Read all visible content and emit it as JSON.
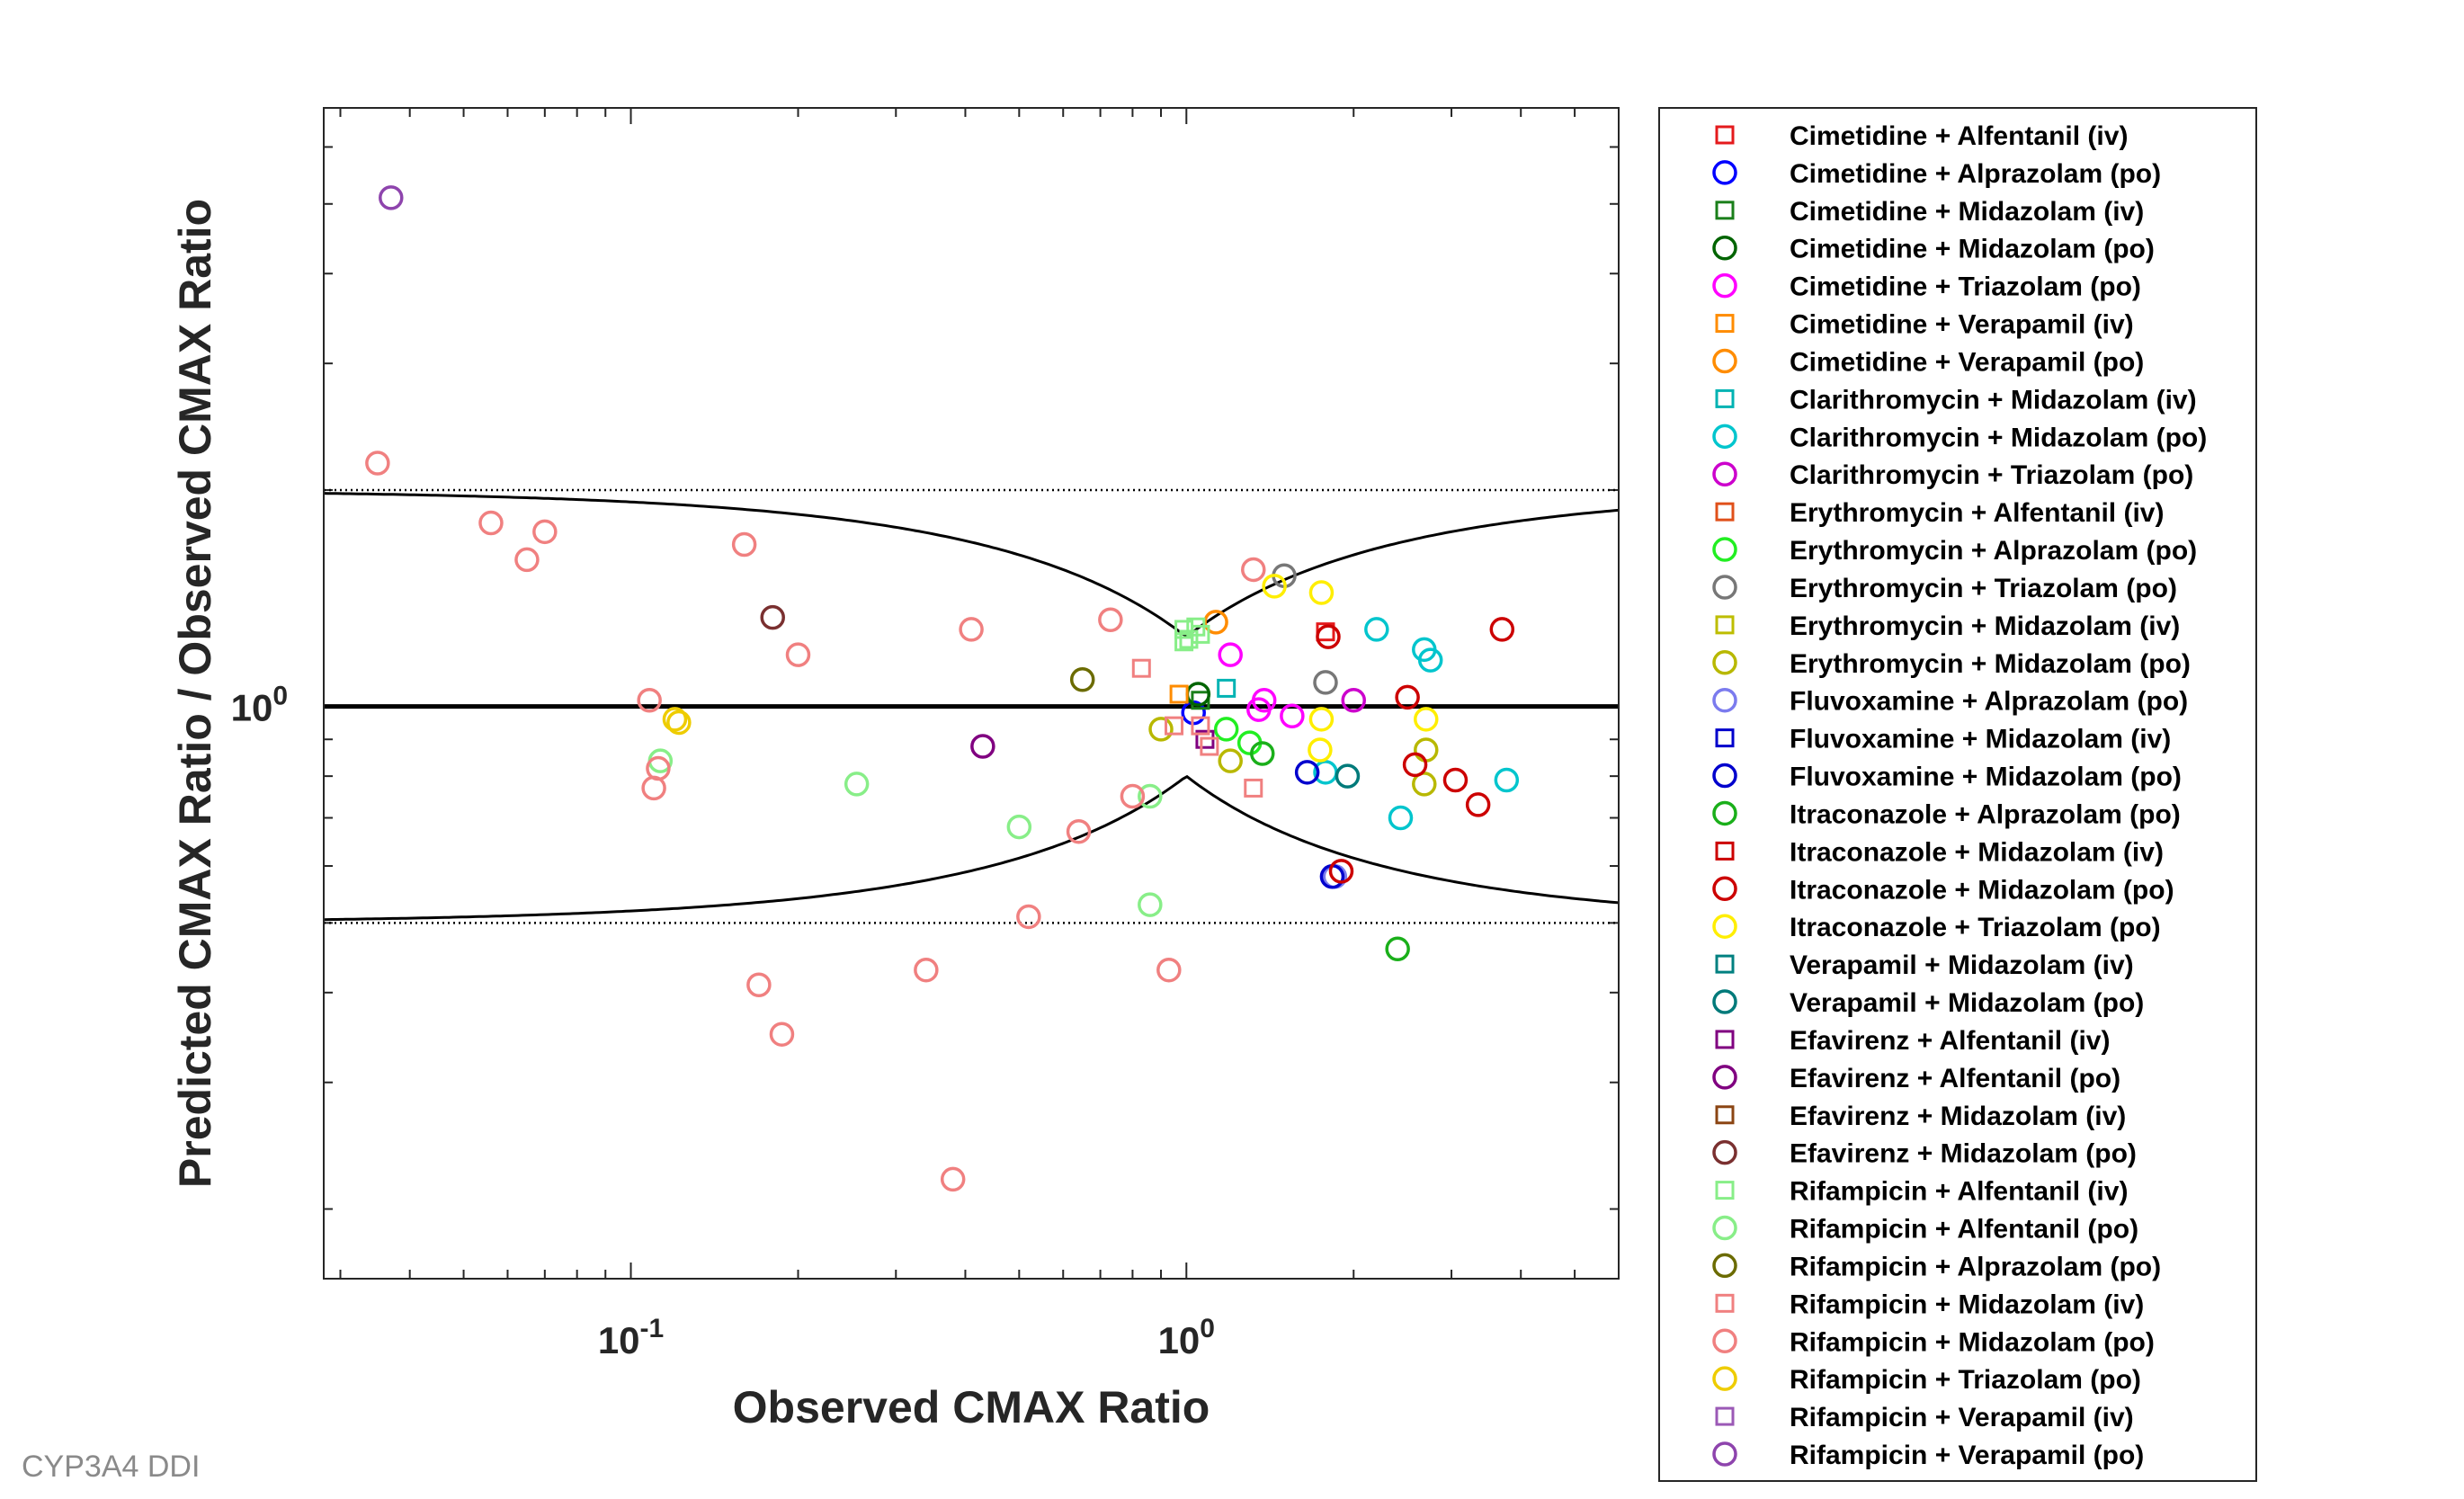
{
  "footer": "CYP3A4 DDI",
  "chart_data": {
    "type": "scatter",
    "xlabel": "Observed CMAX Ratio",
    "ylabel": "Predicted CMAX Ratio / Observed CMAX Ratio",
    "xscale": "log",
    "yscale": "log",
    "xlim": [
      0.028,
      6.0
    ],
    "ylim": [
      0.16,
      6.8
    ],
    "xticks": [
      {
        "value": 0.1,
        "base": "10",
        "exp": "-1"
      },
      {
        "value": 1.0,
        "base": "10",
        "exp": "0"
      }
    ],
    "yticks": [
      {
        "value": 1.0,
        "base": "10",
        "exp": "0"
      }
    ],
    "grid": false,
    "legend_position": "outside-right",
    "reference_lines": [
      {
        "type": "unity",
        "y": 1.0,
        "style": "solid-thick"
      },
      {
        "type": "limit",
        "y": 2.0,
        "style": "dotted"
      },
      {
        "type": "limit",
        "y": 0.5,
        "style": "dotted"
      },
      {
        "type": "guest-limits",
        "delta": 1.25,
        "style": "solid"
      }
    ],
    "series": [
      {
        "name": "Cimetidine + Alfentanil (iv)",
        "marker": "square",
        "color": "#e41a1c",
        "points": [
          [
            1.78,
            1.27
          ]
        ]
      },
      {
        "name": "Cimetidine + Alprazolam (po)",
        "marker": "circle",
        "color": "#0000ff",
        "points": [
          [
            1.03,
            0.98
          ]
        ]
      },
      {
        "name": "Cimetidine + Midazolam (iv)",
        "marker": "square",
        "color": "#1a7f1a",
        "points": [
          [
            1.06,
            1.02
          ]
        ]
      },
      {
        "name": "Cimetidine + Midazolam (po)",
        "marker": "circle",
        "color": "#006400",
        "points": [
          [
            1.05,
            1.04
          ]
        ]
      },
      {
        "name": "Cimetidine + Triazolam (po)",
        "marker": "circle",
        "color": "#ff00ff",
        "points": [
          [
            1.2,
            1.18
          ],
          [
            1.38,
            1.02
          ],
          [
            1.35,
            0.99
          ],
          [
            1.55,
            0.97
          ]
        ]
      },
      {
        "name": "Cimetidine + Verapamil (iv)",
        "marker": "square",
        "color": "#ff8c00",
        "points": [
          [
            0.97,
            1.04
          ]
        ]
      },
      {
        "name": "Cimetidine + Verapamil (po)",
        "marker": "circle",
        "color": "#ff8c00",
        "points": [
          [
            1.13,
            1.31
          ]
        ]
      },
      {
        "name": "Clarithromycin + Midazolam (iv)",
        "marker": "square",
        "color": "#00b3b3",
        "points": [
          [
            1.18,
            1.06
          ]
        ]
      },
      {
        "name": "Clarithromycin + Midazolam (po)",
        "marker": "circle",
        "color": "#00c5cd",
        "points": [
          [
            2.2,
            1.28
          ],
          [
            2.68,
            1.2
          ],
          [
            2.75,
            1.16
          ],
          [
            3.77,
            0.79
          ],
          [
            2.43,
            0.7
          ],
          [
            1.78,
            0.81
          ]
        ]
      },
      {
        "name": "Clarithromycin + Triazolam (po)",
        "marker": "circle",
        "color": "#cc00cc",
        "points": [
          [
            2.0,
            1.02
          ]
        ]
      },
      {
        "name": "Erythromycin + Alfentanil (iv)",
        "marker": "square",
        "color": "#e0501a",
        "points": []
      },
      {
        "name": "Erythromycin + Alprazolam (po)",
        "marker": "circle",
        "color": "#22ee22",
        "points": [
          [
            1.18,
            0.93
          ],
          [
            1.3,
            0.89
          ]
        ]
      },
      {
        "name": "Erythromycin + Triazolam (po)",
        "marker": "circle",
        "color": "#777777",
        "points": [
          [
            1.5,
            1.52
          ],
          [
            1.78,
            1.08
          ]
        ]
      },
      {
        "name": "Erythromycin + Midazolam (iv)",
        "marker": "square",
        "color": "#bdbd00",
        "points": []
      },
      {
        "name": "Erythromycin + Midazolam (po)",
        "marker": "circle",
        "color": "#b8b800",
        "points": [
          [
            0.9,
            0.93
          ],
          [
            1.2,
            0.84
          ],
          [
            2.7,
            0.87
          ],
          [
            2.68,
            0.78
          ]
        ]
      },
      {
        "name": "Fluvoxamine + Alprazolam (po)",
        "marker": "circle",
        "color": "#7b7bee",
        "points": [
          [
            1.85,
            0.58
          ]
        ]
      },
      {
        "name": "Fluvoxamine + Midazolam (iv)",
        "marker": "square",
        "color": "#0000cc",
        "points": []
      },
      {
        "name": "Fluvoxamine + Midazolam (po)",
        "marker": "circle",
        "color": "#0000cd",
        "points": [
          [
            1.65,
            0.81
          ],
          [
            1.83,
            0.58
          ]
        ]
      },
      {
        "name": "Itraconazole + Alprazolam (po)",
        "marker": "circle",
        "color": "#1aaf1a",
        "points": [
          [
            1.37,
            0.86
          ],
          [
            2.4,
            0.46
          ]
        ]
      },
      {
        "name": "Itraconazole + Midazolam (iv)",
        "marker": "square",
        "color": "#cc0000",
        "points": []
      },
      {
        "name": "Itraconazole + Midazolam (po)",
        "marker": "circle",
        "color": "#cc0000",
        "points": [
          [
            1.8,
            1.25
          ],
          [
            2.5,
            1.03
          ],
          [
            2.58,
            0.83
          ],
          [
            3.05,
            0.79
          ],
          [
            3.35,
            0.73
          ],
          [
            3.7,
            1.28
          ],
          [
            1.9,
            0.59
          ]
        ]
      },
      {
        "name": "Itraconazole + Triazolam (po)",
        "marker": "circle",
        "color": "#ffee00",
        "points": [
          [
            1.44,
            1.47
          ],
          [
            1.75,
            1.44
          ],
          [
            1.75,
            0.96
          ],
          [
            1.74,
            0.87
          ],
          [
            2.7,
            0.96
          ]
        ]
      },
      {
        "name": "Verapamil + Midazolam (iv)",
        "marker": "square",
        "color": "#008080",
        "points": []
      },
      {
        "name": "Verapamil + Midazolam (po)",
        "marker": "circle",
        "color": "#007a7a",
        "points": [
          [
            1.95,
            0.8
          ]
        ]
      },
      {
        "name": "Efavirenz + Alfentanil (iv)",
        "marker": "square",
        "color": "#800080",
        "points": [
          [
            1.08,
            0.9
          ]
        ]
      },
      {
        "name": "Efavirenz + Alfentanil (po)",
        "marker": "circle",
        "color": "#800080",
        "points": [
          [
            0.43,
            0.88
          ]
        ]
      },
      {
        "name": "Efavirenz + Midazolam (iv)",
        "marker": "square",
        "color": "#8b4513",
        "points": []
      },
      {
        "name": "Efavirenz + Midazolam (po)",
        "marker": "circle",
        "color": "#7a3030",
        "points": [
          [
            0.18,
            1.33
          ]
        ]
      },
      {
        "name": "Rifampicin + Alfentanil (iv)",
        "marker": "square",
        "color": "#88ee88",
        "points": [
          [
            0.99,
            1.28
          ],
          [
            1.04,
            1.29
          ],
          [
            1.01,
            1.24
          ],
          [
            1.06,
            1.26
          ],
          [
            0.99,
            1.23
          ]
        ]
      },
      {
        "name": "Rifampicin + Alfentanil (po)",
        "marker": "circle",
        "color": "#88ee88",
        "points": [
          [
            0.113,
            0.84
          ],
          [
            0.255,
            0.78
          ],
          [
            0.5,
            0.68
          ],
          [
            0.86,
            0.75
          ],
          [
            0.86,
            0.53
          ]
        ]
      },
      {
        "name": "Rifampicin + Alprazolam (po)",
        "marker": "circle",
        "color": "#6b6b00",
        "points": [
          [
            0.65,
            1.09
          ]
        ]
      },
      {
        "name": "Rifampicin + Midazolam (iv)",
        "marker": "square",
        "color": "#f08080",
        "points": [
          [
            0.83,
            1.13
          ],
          [
            0.95,
            0.94
          ],
          [
            1.06,
            0.94
          ],
          [
            1.1,
            0.88
          ],
          [
            1.32,
            0.77
          ]
        ]
      },
      {
        "name": "Rifampicin + Midazolam (po)",
        "marker": "circle",
        "color": "#f08080",
        "points": [
          [
            0.035,
            2.18
          ],
          [
            0.056,
            1.8
          ],
          [
            0.065,
            1.6
          ],
          [
            0.07,
            1.75
          ],
          [
            0.108,
            1.02
          ],
          [
            0.112,
            0.82
          ],
          [
            0.11,
            0.77
          ],
          [
            0.16,
            1.68
          ],
          [
            0.17,
            0.41
          ],
          [
            0.187,
            0.35
          ],
          [
            0.2,
            1.18
          ],
          [
            0.34,
            0.43
          ],
          [
            0.38,
            0.22
          ],
          [
            0.41,
            1.28
          ],
          [
            0.52,
            0.51
          ],
          [
            0.64,
            0.67
          ],
          [
            0.73,
            1.32
          ],
          [
            0.8,
            0.75
          ],
          [
            0.93,
            0.43
          ],
          [
            1.32,
            1.55
          ]
        ]
      },
      {
        "name": "Rifampicin + Triazolam (po)",
        "marker": "circle",
        "color": "#eecc00",
        "points": [
          [
            0.12,
            0.96
          ],
          [
            0.122,
            0.95
          ]
        ]
      },
      {
        "name": "Rifampicin + Verapamil (iv)",
        "marker": "square",
        "color": "#9b59b6",
        "points": []
      },
      {
        "name": "Rifampicin + Verapamil (po)",
        "marker": "circle",
        "color": "#8e44ad",
        "points": [
          [
            0.037,
            5.1
          ]
        ]
      }
    ]
  }
}
